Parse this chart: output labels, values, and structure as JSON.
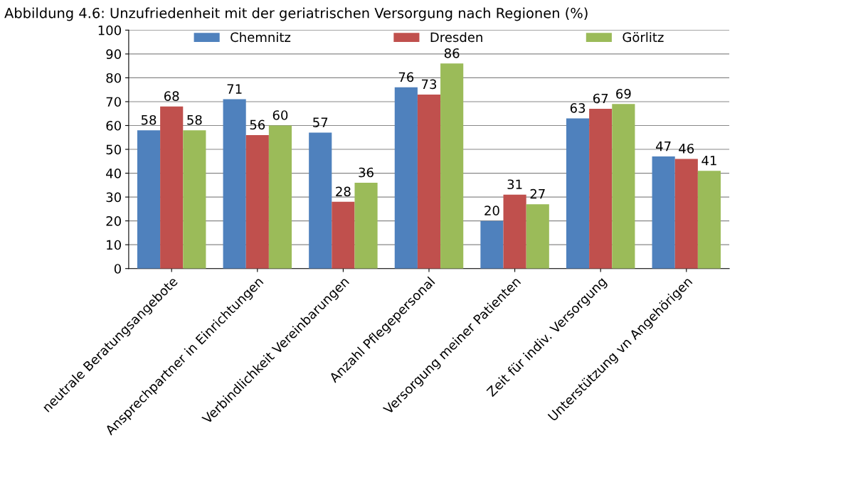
{
  "chart_data": {
    "type": "bar",
    "title": "Abbildung 4.6: Unzufriedenheit mit der geriatrischen Versorgung nach Regionen (%)",
    "categories": [
      "neutrale Beratungsangebote",
      "Ansprechpartner in Einrichtungen",
      "Verbindlichkeit Vereinbarungen",
      "Anzahl Pflegepersonal",
      "Versorgung meiner Patienten",
      "Zeit für indiv. Versorgung",
      "Unterstützung vn Angehörigen"
    ],
    "series": [
      {
        "name": "Chemnitz",
        "color": "#4f81bd",
        "values": [
          58,
          71,
          57,
          76,
          20,
          63,
          47
        ]
      },
      {
        "name": "Dresden",
        "color": "#c0504d",
        "values": [
          68,
          56,
          28,
          73,
          31,
          67,
          46
        ]
      },
      {
        "name": "Görlitz",
        "color": "#9bbb59",
        "values": [
          58,
          60,
          36,
          86,
          27,
          69,
          41
        ]
      }
    ],
    "ylim": [
      0,
      100
    ],
    "yticks": [
      0,
      10,
      20,
      30,
      40,
      50,
      60,
      70,
      80,
      90,
      100
    ],
    "grid": "y",
    "legend": "top",
    "data_labels": true
  }
}
